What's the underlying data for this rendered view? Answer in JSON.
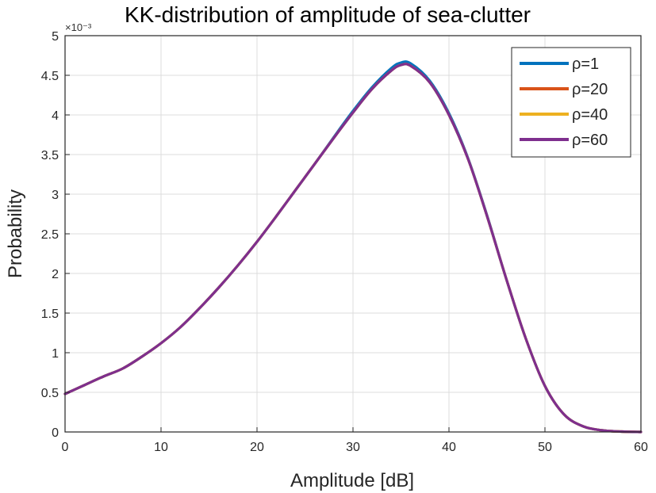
{
  "chart_data": {
    "type": "line",
    "title": "KK-distribution of amplitude of sea-clutter",
    "xlabel": "Amplitude [dB]",
    "ylabel": "Probability",
    "y_exponent_label": "×10⁻³",
    "y_scale_factor": 0.001,
    "xlim": [
      0,
      60
    ],
    "ylim": [
      0,
      5
    ],
    "xticks": [
      0,
      10,
      20,
      30,
      40,
      50,
      60
    ],
    "yticks": [
      0,
      0.5,
      1,
      1.5,
      2,
      2.5,
      3,
      3.5,
      4,
      4.5,
      5
    ],
    "ytick_labels": [
      "0",
      "0.5",
      "1",
      "1.5",
      "2",
      "2.5",
      "3",
      "3.5",
      "4",
      "4.5",
      "5"
    ],
    "grid": true,
    "legend_position": "top-right",
    "x": [
      0,
      2,
      4,
      6,
      8,
      10,
      12,
      14,
      16,
      18,
      20,
      22,
      24,
      26,
      28,
      30,
      32,
      34,
      35,
      36,
      38,
      40,
      42,
      44,
      46,
      48,
      50,
      52,
      54,
      56,
      58,
      60
    ],
    "series": [
      {
        "name": "ρ=1",
        "color": "#0072BD",
        "values": [
          0.48,
          0.59,
          0.7,
          0.8,
          0.95,
          1.12,
          1.32,
          1.56,
          1.82,
          2.1,
          2.4,
          2.72,
          3.05,
          3.38,
          3.72,
          4.05,
          4.35,
          4.59,
          4.66,
          4.65,
          4.43,
          4.02,
          3.45,
          2.72,
          1.92,
          1.18,
          0.58,
          0.22,
          0.07,
          0.02,
          0.005,
          0.0
        ]
      },
      {
        "name": "ρ=20",
        "color": "#D95319",
        "values": [
          0.48,
          0.59,
          0.7,
          0.8,
          0.95,
          1.12,
          1.32,
          1.56,
          1.82,
          2.1,
          2.4,
          2.72,
          3.05,
          3.38,
          3.71,
          4.03,
          4.33,
          4.56,
          4.63,
          4.62,
          4.41,
          4.0,
          3.44,
          2.71,
          1.92,
          1.18,
          0.58,
          0.22,
          0.07,
          0.02,
          0.005,
          0.0
        ]
      },
      {
        "name": "ρ=40",
        "color": "#EDB120",
        "values": [
          0.48,
          0.59,
          0.7,
          0.8,
          0.95,
          1.12,
          1.32,
          1.56,
          1.82,
          2.1,
          2.4,
          2.72,
          3.05,
          3.38,
          3.71,
          4.03,
          4.33,
          4.56,
          4.63,
          4.62,
          4.41,
          4.0,
          3.44,
          2.71,
          1.92,
          1.18,
          0.58,
          0.22,
          0.07,
          0.02,
          0.005,
          0.0
        ]
      },
      {
        "name": "ρ=60",
        "color": "#7E2F8E",
        "values": [
          0.48,
          0.59,
          0.7,
          0.8,
          0.95,
          1.12,
          1.32,
          1.56,
          1.82,
          2.1,
          2.4,
          2.72,
          3.05,
          3.38,
          3.71,
          4.03,
          4.33,
          4.56,
          4.63,
          4.62,
          4.41,
          4.0,
          3.44,
          2.71,
          1.92,
          1.18,
          0.58,
          0.22,
          0.07,
          0.02,
          0.005,
          0.0
        ]
      }
    ]
  }
}
